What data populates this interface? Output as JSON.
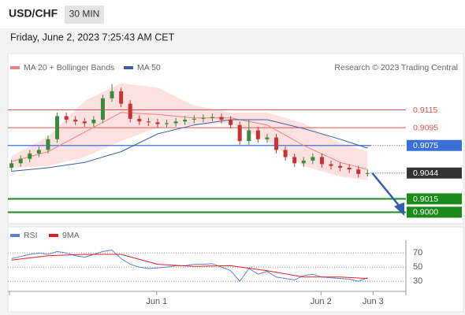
{
  "header": {
    "symbol": "USD/CHF",
    "interval": "30 MIN",
    "timestamp": "Friday, June 2, 2023 7:25:43 AM CET"
  },
  "chart_data": [
    {
      "type": "candlestick",
      "source": "Research © 2023 Trading Central",
      "up_color": "#3a8a3a",
      "down_color": "#c83232",
      "open": [
        0.905,
        0.9055,
        0.906,
        0.9066,
        0.907,
        0.9082,
        0.9108,
        0.9104,
        0.9102,
        0.91,
        0.9104,
        0.9128,
        0.9136,
        0.9122,
        0.9105,
        0.9102,
        0.9101,
        0.9099,
        0.91,
        0.9102,
        0.9104,
        0.9105,
        0.9106,
        0.9107,
        0.9104,
        0.9098,
        0.908,
        0.9092,
        0.9082,
        0.9084,
        0.907,
        0.9062,
        0.9055,
        0.9058,
        0.9062,
        0.9054,
        0.9052,
        0.905,
        0.9048,
        0.9043
      ],
      "high": [
        0.9059,
        0.9064,
        0.907,
        0.9074,
        0.9086,
        0.9112,
        0.9112,
        0.9108,
        0.9106,
        0.9108,
        0.9132,
        0.9144,
        0.914,
        0.9126,
        0.9109,
        0.9106,
        0.9105,
        0.9104,
        0.9106,
        0.9108,
        0.9109,
        0.911,
        0.9111,
        0.9111,
        0.9108,
        0.9102,
        0.9104,
        0.9096,
        0.9088,
        0.9088,
        0.9074,
        0.9066,
        0.9062,
        0.9066,
        0.9066,
        0.9058,
        0.9056,
        0.9054,
        0.9052,
        0.9048
      ],
      "low": [
        0.9046,
        0.9051,
        0.9056,
        0.9062,
        0.9066,
        0.9078,
        0.91,
        0.9098,
        0.9096,
        0.9096,
        0.91,
        0.9124,
        0.9118,
        0.9101,
        0.9098,
        0.9097,
        0.9095,
        0.9095,
        0.9096,
        0.9098,
        0.91,
        0.9101,
        0.9102,
        0.91,
        0.9094,
        0.9076,
        0.9076,
        0.9078,
        0.9078,
        0.9066,
        0.9058,
        0.9051,
        0.9051,
        0.9054,
        0.905,
        0.9048,
        0.9046,
        0.9044,
        0.9039,
        0.904
      ],
      "close": [
        0.9055,
        0.906,
        0.9066,
        0.907,
        0.9082,
        0.9108,
        0.9104,
        0.9102,
        0.91,
        0.9104,
        0.9128,
        0.9136,
        0.9122,
        0.9105,
        0.9102,
        0.9101,
        0.9099,
        0.91,
        0.9102,
        0.9104,
        0.9105,
        0.9106,
        0.9107,
        0.9104,
        0.9098,
        0.908,
        0.9092,
        0.9082,
        0.9084,
        0.907,
        0.9062,
        0.9055,
        0.9058,
        0.9062,
        0.9054,
        0.9052,
        0.905,
        0.9048,
        0.9043,
        0.9044
      ],
      "overlays": [
        {
          "name": "MA 20 + Bollinger Bands",
          "color": "#f08080",
          "band_color": "#fbd9d9",
          "x": [
            0,
            4,
            8,
            12,
            16,
            20,
            24,
            28,
            32,
            36,
            39
          ],
          "values": [
            0.9057,
            0.9068,
            0.909,
            0.9112,
            0.911,
            0.9106,
            0.9106,
            0.9098,
            0.9075,
            0.9056,
            0.9048
          ],
          "upper": [
            0.9063,
            0.9085,
            0.9125,
            0.9145,
            0.914,
            0.912,
            0.9112,
            0.9112,
            0.91,
            0.9078,
            0.9068
          ],
          "lower": [
            0.905,
            0.9052,
            0.9062,
            0.908,
            0.9095,
            0.9098,
            0.91,
            0.908,
            0.9052,
            0.904,
            0.9036
          ]
        },
        {
          "name": "MA 50",
          "color": "#3a5fa0",
          "x": [
            0,
            4,
            8,
            12,
            16,
            20,
            24,
            28,
            32,
            36,
            39
          ],
          "values": [
            0.9046,
            0.905,
            0.9056,
            0.9068,
            0.9088,
            0.9098,
            0.9104,
            0.9104,
            0.9094,
            0.9082,
            0.9072
          ]
        }
      ],
      "levels": [
        {
          "value": 0.9115,
          "label": "0.9115",
          "color": "#e05050",
          "boxed": false,
          "line": "solid"
        },
        {
          "value": 0.9095,
          "label": "0.9095",
          "color": "#e05050",
          "boxed": false,
          "line": "solid"
        },
        {
          "value": 0.9075,
          "label": "0.9075",
          "color": "#3b6fd8",
          "boxed": true,
          "line": "tail-dotted"
        },
        {
          "value": 0.9044,
          "label": "0.9044",
          "color": "#333333",
          "boxed": true,
          "line": "dotted"
        },
        {
          "value": 0.9015,
          "label": "0.9015",
          "color": "#1a8a1a",
          "boxed": true,
          "line": "thick"
        },
        {
          "value": 0.9,
          "label": "0.9000",
          "color": "#1a8a1a",
          "boxed": true,
          "line": "thick"
        }
      ],
      "ylim": [
        0.8988,
        0.915
      ],
      "xlim": [
        -0.4,
        43.2
      ]
    },
    {
      "type": "line",
      "series": [
        {
          "name": "RSI",
          "color": "#5b7fd6",
          "values": [
            62,
            65,
            68,
            70,
            68,
            72,
            70,
            66,
            64,
            68,
            72,
            74,
            62,
            54,
            50,
            48,
            49,
            50,
            52,
            52,
            54,
            54,
            55,
            50,
            45,
            30,
            48,
            40,
            44,
            36,
            34,
            32,
            38,
            40,
            36,
            35,
            34,
            33,
            30,
            35
          ]
        },
        {
          "name": "9MA",
          "color": "#e02020",
          "x": [
            0,
            4,
            8,
            12,
            16,
            20,
            24,
            28,
            32,
            36,
            39
          ],
          "values": [
            60,
            66,
            68,
            68,
            54,
            51,
            52,
            45,
            36,
            36,
            34
          ]
        }
      ],
      "ylim": [
        18,
        88
      ],
      "yticks": [
        70,
        50,
        30
      ],
      "xlim": [
        -0.4,
        43.2
      ],
      "xticks": [
        {
          "value": 15.9,
          "label": "Jun 1"
        },
        {
          "value": 33.9,
          "label": "Jun 2"
        },
        {
          "value": 39.6,
          "label": "Jun 3"
        }
      ]
    }
  ]
}
